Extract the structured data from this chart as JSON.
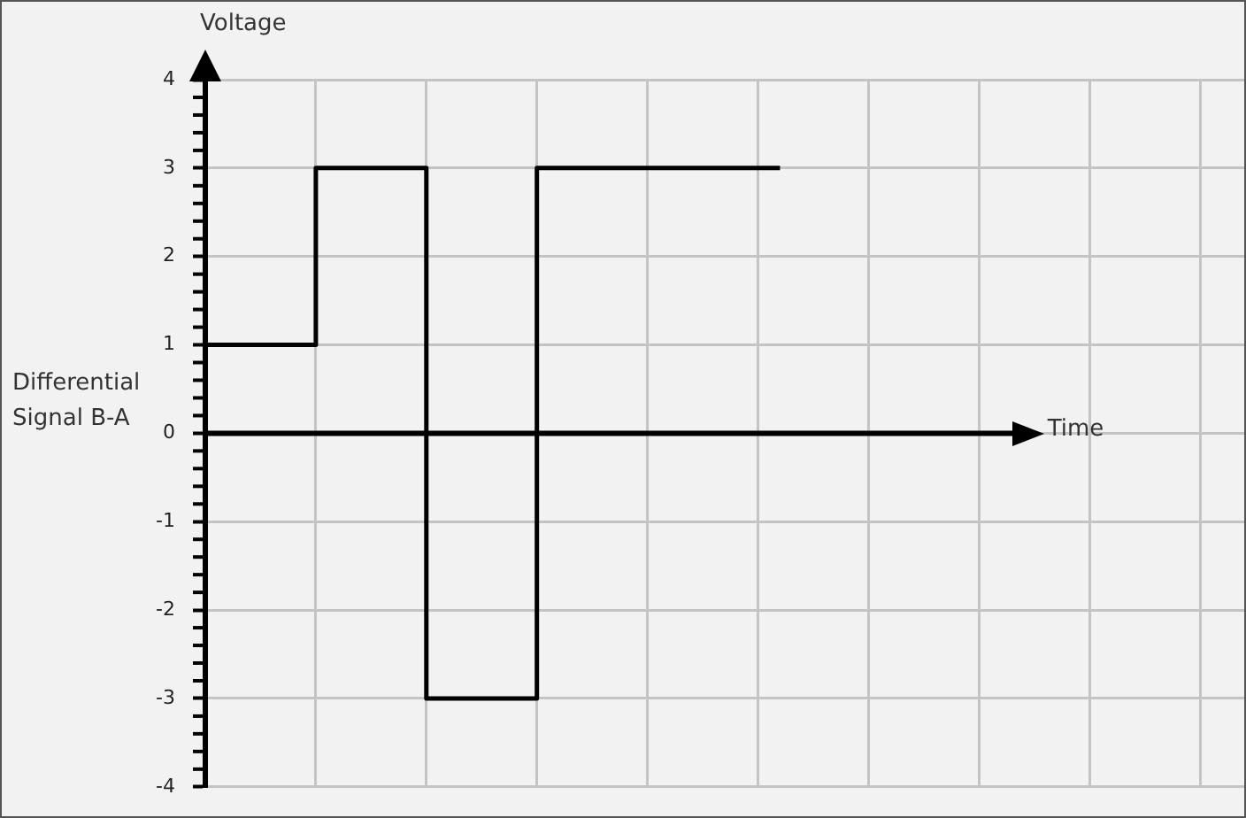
{
  "chart_data": {
    "type": "step",
    "ylabel": "Voltage",
    "xlabel": "Time",
    "annotations": [
      "Differential Signal B-A"
    ],
    "categories": [
      null,
      null,
      null,
      null,
      null,
      null,
      null,
      null,
      null,
      null,
      null,
      null,
      null,
      null,
      null,
      null,
      null,
      null,
      null,
      null,
      null,
      null,
      null,
      null,
      null,
      null,
      null,
      null,
      null,
      null,
      null,
      null,
      null,
      null,
      null,
      null,
      null,
      null,
      null,
      null,
      null,
      null,
      null,
      null,
      null,
      null,
      null,
      null
    ],
    "series": [
      {
        "color": "#000000",
        "values": [
          1,
          1,
          1,
          1,
          1,
          3,
          3,
          3,
          3,
          3,
          -3,
          -3,
          -3,
          -3,
          -3,
          3,
          3,
          3,
          3,
          3,
          3,
          3,
          3,
          3,
          3,
          3,
          3,
          null,
          null,
          null,
          null,
          null,
          null,
          null,
          null,
          null,
          null,
          null,
          null,
          null,
          null,
          null,
          null,
          null,
          null,
          null,
          null,
          null
        ]
      }
    ],
    "ylim": [
      -4,
      4
    ],
    "yticks": [
      -4,
      -3,
      -2,
      -1,
      0,
      1,
      2,
      3,
      4
    ],
    "tick_labels": "y",
    "grid": true,
    "legend": false,
    "marker": "none",
    "line_style": "solid"
  }
}
